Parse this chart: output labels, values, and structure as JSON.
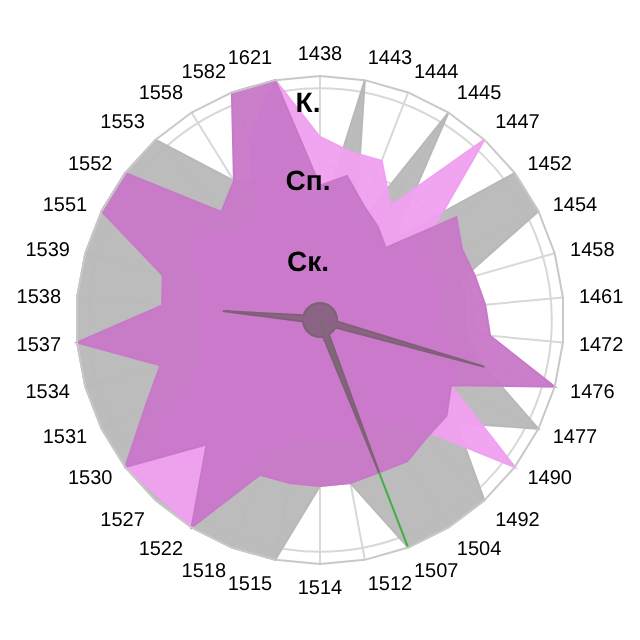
{
  "chart_data": {
    "type": "radar",
    "categories": [
      "1438",
      "1443",
      "1444",
      "1445",
      "1447",
      "1452",
      "1454",
      "1458",
      "1461",
      "1472",
      "1476",
      "1477",
      "1490",
      "1492",
      "1504",
      "1507",
      "1512",
      "1514",
      "1515",
      "1518",
      "1522",
      "1527",
      "1530",
      "1531",
      "1534",
      "1537",
      "1538",
      "1539",
      "1551",
      "1552",
      "1553",
      "1558",
      "1582",
      "1621"
    ],
    "series": [
      {
        "color": "#b8b8b8",
        "values": [
          0.4,
          1,
          0.4,
          1,
          0.45,
          1,
          1,
          0.6,
          0.6,
          0.6,
          0.7,
          1,
          0.7,
          1,
          1,
          1,
          0.68,
          0.68,
          1,
          1,
          1,
          1,
          1,
          1,
          1,
          1,
          1,
          1,
          1,
          1,
          1,
          0.67,
          0.6,
          0.6
        ]
      },
      {
        "color": "#f0a0f0",
        "values": [
          0.75,
          0.7,
          0.7,
          0.55,
          1,
          0.55,
          0.5,
          0.5,
          0.5,
          0.5,
          0.6,
          0.6,
          1,
          0.6,
          0.5,
          0.5,
          0.5,
          0.5,
          0.5,
          0.6,
          1,
          0.98,
          1,
          0.6,
          0.5,
          0.5,
          0.5,
          0.5,
          0.6,
          0.6,
          0.5,
          0.5,
          0.8,
          1
        ]
      },
      {
        "color": "#c878c8",
        "values": [
          0.55,
          0.6,
          0.5,
          0.45,
          0.4,
          0.7,
          0.65,
          0.66,
          0.68,
          0.7,
          1,
          0.6,
          0.65,
          0.65,
          0.68,
          0.67,
          0.68,
          0.68,
          0.68,
          0.68,
          1,
          0.69,
          1,
          0.8,
          0.68,
          1,
          0.65,
          0.67,
          1,
          1,
          0.6,
          0.67,
          1,
          1
        ]
      },
      {
        "color": "#40b040",
        "values": [
          0,
          0,
          0,
          0,
          0,
          0,
          0,
          0,
          0,
          0,
          0,
          0,
          0,
          0,
          0,
          1,
          0,
          0,
          0,
          0,
          0,
          0,
          0,
          0,
          0,
          0,
          0,
          0,
          0,
          0,
          0,
          0,
          0,
          0
        ]
      },
      {
        "color": "#806078",
        "values": [
          0.07,
          0.07,
          0.07,
          0.07,
          0.07,
          0.07,
          0.07,
          0.07,
          0.07,
          0.07,
          0.7,
          0.07,
          0.07,
          0.07,
          0.07,
          0.67,
          0.07,
          0.07,
          0.07,
          0.07,
          0.07,
          0.07,
          0.07,
          0.07,
          0.07,
          0.07,
          0.4,
          0.07,
          0.07,
          0.07,
          0.07,
          0.07,
          0.07,
          0.07
        ]
      }
    ],
    "ylim": [
      0,
      1
    ],
    "yticks": [
      {
        "value": 0.3,
        "label": "Ск."
      },
      {
        "value": 0.63,
        "label": "Сп."
      },
      {
        "value": 0.95,
        "label": "К."
      }
    ],
    "grid": true
  }
}
